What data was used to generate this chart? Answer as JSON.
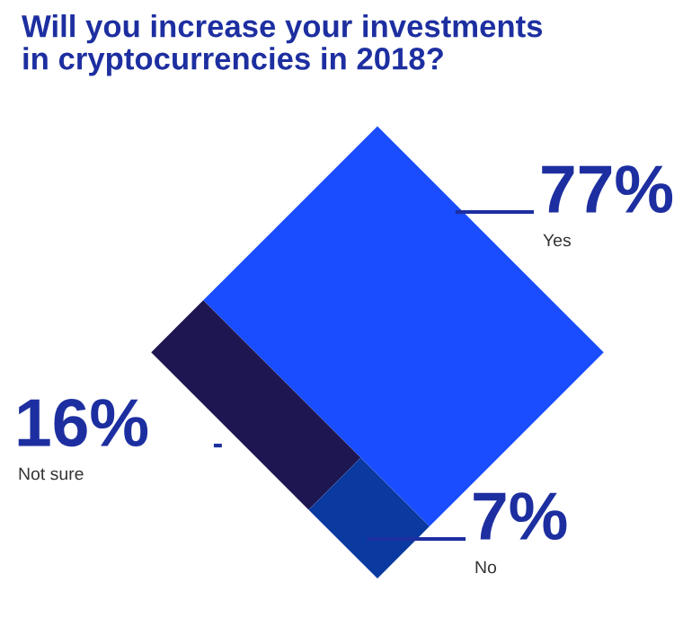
{
  "chart_data": {
    "type": "other",
    "title": "Will you increase your investments\nin cryptocurrencies in 2018?",
    "categories": [
      "Yes",
      "Not sure",
      "No"
    ],
    "values": [
      77,
      16,
      7
    ],
    "value_labels": [
      "77%",
      "16%",
      "7%"
    ],
    "colors": [
      "#1a4dff",
      "#1e1650",
      "#0a3aa0"
    ]
  }
}
